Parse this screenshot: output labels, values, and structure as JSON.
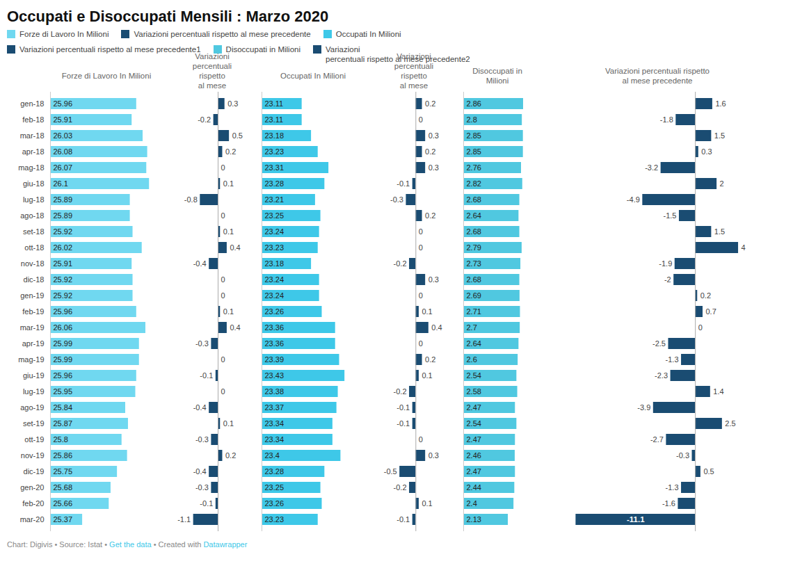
{
  "title": "Occupati e Disoccupati Mensili : Marzo 2020",
  "annotations": [
    {
      "text": "Chart: Digivis • Source: Istat • ",
      "color": "#888888"
    },
    {
      "text": "Get the data",
      "color": "#3ec8e8"
    },
    {
      "text": " • Created with ",
      "color": "#888888"
    },
    {
      "text": "Datawrapper",
      "color": "#3ec8e8"
    }
  ],
  "chart_data": [
    {
      "type": "bar",
      "orientation": "horizontal",
      "title": "Forze di Lavoro In Milioni",
      "categories": [
        "gen-18",
        "feb-18",
        "mar-18",
        "apr-18",
        "mag-18",
        "giu-18",
        "lug-18",
        "ago-18",
        "set-18",
        "ott-18",
        "nov-18",
        "dic-18",
        "gen-19",
        "feb-19",
        "mar-19",
        "apr-19",
        "mag-19",
        "giu-19",
        "lug-19",
        "ago-19",
        "set-19",
        "ott-19",
        "nov-19",
        "dic-19",
        "gen-20",
        "feb-20",
        "mar-20"
      ],
      "series": [
        {
          "name": "Forze di Lavoro In Milioni",
          "color": "#70d8f0",
          "values": [
            25.96,
            25.91,
            26.03,
            26.08,
            26.07,
            26.1,
            25.89,
            25.89,
            25.92,
            26.02,
            25.91,
            25.92,
            25.92,
            25.96,
            26.06,
            25.99,
            25.99,
            25.96,
            25.95,
            25.84,
            25.87,
            25.8,
            25.86,
            25.75,
            25.68,
            25.66,
            25.37
          ]
        }
      ],
      "xlim": [
        25.02,
        26.25
      ],
      "data_labels": true,
      "tick_labels": "y",
      "grid": false,
      "legend": "top"
    },
    {
      "type": "bar",
      "orientation": "horizontal",
      "title": "Variazioni percentuali rispetto\nal mese precedente",
      "categories": [
        "gen-18",
        "feb-18",
        "mar-18",
        "apr-18",
        "mag-18",
        "giu-18",
        "lug-18",
        "ago-18",
        "set-18",
        "ott-18",
        "nov-18",
        "dic-18",
        "gen-19",
        "feb-19",
        "mar-19",
        "apr-19",
        "mag-19",
        "giu-19",
        "lug-19",
        "ago-19",
        "set-19",
        "ott-19",
        "nov-19",
        "dic-19",
        "gen-20",
        "feb-20",
        "mar-20"
      ],
      "series": [
        {
          "name": "Variazioni percentuali rispetto al mese precedente",
          "color": "#1a4c72",
          "values": [
            0.3,
            -0.2,
            0.5,
            0.2,
            0,
            0.1,
            -0.8,
            0,
            0.1,
            0.4,
            -0.4,
            0,
            0,
            0.1,
            0.4,
            -0.3,
            0,
            -0.1,
            0,
            -0.4,
            0.1,
            -0.3,
            0.2,
            -0.4,
            -0.3,
            -0.1,
            -1.1
          ]
        }
      ],
      "xlim": [
        -1.4,
        0.9
      ],
      "data_labels": true,
      "tick_labels": false,
      "grid": false,
      "legend": "top"
    },
    {
      "type": "bar",
      "orientation": "horizontal",
      "title": "Occupati In Milioni",
      "categories": [
        "gen-18",
        "feb-18",
        "mar-18",
        "apr-18",
        "mag-18",
        "giu-18",
        "lug-18",
        "ago-18",
        "set-18",
        "ott-18",
        "nov-18",
        "dic-18",
        "gen-19",
        "feb-19",
        "mar-19",
        "apr-19",
        "mag-19",
        "giu-19",
        "lug-19",
        "ago-19",
        "set-19",
        "ott-19",
        "nov-19",
        "dic-19",
        "gen-20",
        "feb-20",
        "mar-20"
      ],
      "series": [
        {
          "name": "Occupati In Milioni",
          "color": "#3ec8e8",
          "values": [
            23.11,
            23.11,
            23.18,
            23.23,
            23.31,
            23.28,
            23.21,
            23.25,
            23.24,
            23.23,
            23.18,
            23.24,
            23.24,
            23.26,
            23.36,
            23.36,
            23.39,
            23.43,
            23.38,
            23.37,
            23.34,
            23.34,
            23.4,
            23.28,
            23.25,
            23.26,
            23.23
          ]
        }
      ],
      "xlim": [
        22.81,
        23.58
      ],
      "data_labels": true,
      "tick_labels": false,
      "grid": false,
      "legend": "top"
    },
    {
      "type": "bar",
      "orientation": "horizontal",
      "title": "Variazioni percentuali rispetto\nal mese precedente1",
      "categories": [
        "gen-18",
        "feb-18",
        "mar-18",
        "apr-18",
        "mag-18",
        "giu-18",
        "lug-18",
        "ago-18",
        "set-18",
        "ott-18",
        "nov-18",
        "dic-18",
        "gen-19",
        "feb-19",
        "mar-19",
        "apr-19",
        "mag-19",
        "giu-19",
        "lug-19",
        "ago-19",
        "set-19",
        "ott-19",
        "nov-19",
        "dic-19",
        "gen-20",
        "feb-20",
        "mar-20"
      ],
      "series": [
        {
          "name": "Variazioni percentuali rispetto al mese precedente1",
          "color": "#1a4c72",
          "values": [
            0.2,
            0,
            0.3,
            0.2,
            0.3,
            -0.1,
            -0.3,
            0.2,
            0,
            0,
            -0.2,
            0.3,
            0,
            0.1,
            0.4,
            0,
            0.2,
            0.1,
            -0.2,
            -0.1,
            -0.1,
            0,
            0.3,
            -0.5,
            -0.2,
            0.1,
            -0.1
          ]
        }
      ],
      "xlim": [
        -0.85,
        0.75
      ],
      "data_labels": true,
      "tick_labels": false,
      "grid": false,
      "legend": "top"
    },
    {
      "type": "bar",
      "orientation": "horizontal",
      "title": "Disoccupati in Milioni",
      "categories": [
        "gen-18",
        "feb-18",
        "mar-18",
        "apr-18",
        "mag-18",
        "giu-18",
        "lug-18",
        "ago-18",
        "set-18",
        "ott-18",
        "nov-18",
        "dic-18",
        "gen-19",
        "feb-19",
        "mar-19",
        "apr-19",
        "mag-19",
        "giu-19",
        "lug-19",
        "ago-19",
        "set-19",
        "ott-19",
        "nov-19",
        "dic-19",
        "gen-20",
        "feb-20",
        "mar-20"
      ],
      "series": [
        {
          "name": "Disoccupati in Milioni",
          "color": "#50c8e0",
          "values": [
            2.86,
            2.8,
            2.85,
            2.85,
            2.76,
            2.82,
            2.68,
            2.64,
            2.68,
            2.79,
            2.73,
            2.68,
            2.69,
            2.71,
            2.7,
            2.64,
            2.6,
            2.54,
            2.58,
            2.47,
            2.54,
            2.47,
            2.46,
            2.47,
            2.44,
            2.4,
            2.13
          ]
        }
      ],
      "xlim": [
        0,
        3.26
      ],
      "data_labels": true,
      "tick_labels": false,
      "grid": false,
      "legend": "top"
    },
    {
      "type": "bar",
      "orientation": "horizontal",
      "title": "Variazioni percentuali rispetto\nal mese precedente",
      "categories": [
        "gen-18",
        "feb-18",
        "mar-18",
        "apr-18",
        "mag-18",
        "giu-18",
        "lug-18",
        "ago-18",
        "set-18",
        "ott-18",
        "nov-18",
        "dic-18",
        "gen-19",
        "feb-19",
        "mar-19",
        "apr-19",
        "mag-19",
        "giu-19",
        "lug-19",
        "ago-19",
        "set-19",
        "ott-19",
        "nov-19",
        "dic-19",
        "gen-20",
        "feb-20",
        "mar-20"
      ],
      "series": [
        {
          "name": "Variazioni\npercentuali rispetto al mese precedente2",
          "color": "#1a4c72",
          "values": [
            1.6,
            -1.8,
            1.5,
            0.3,
            -3.2,
            2,
            -4.9,
            -1.5,
            1.5,
            4,
            -1.9,
            -2,
            0.2,
            0.7,
            0,
            -2.5,
            -1.3,
            -2.3,
            1.4,
            -3.9,
            2.5,
            -2.7,
            -0.3,
            0.5,
            -1.3,
            -1.6,
            -11.1
          ]
        }
      ],
      "xlim": [
        -13,
        6
      ],
      "data_labels": true,
      "tick_labels": false,
      "grid": false,
      "legend": "top"
    }
  ]
}
